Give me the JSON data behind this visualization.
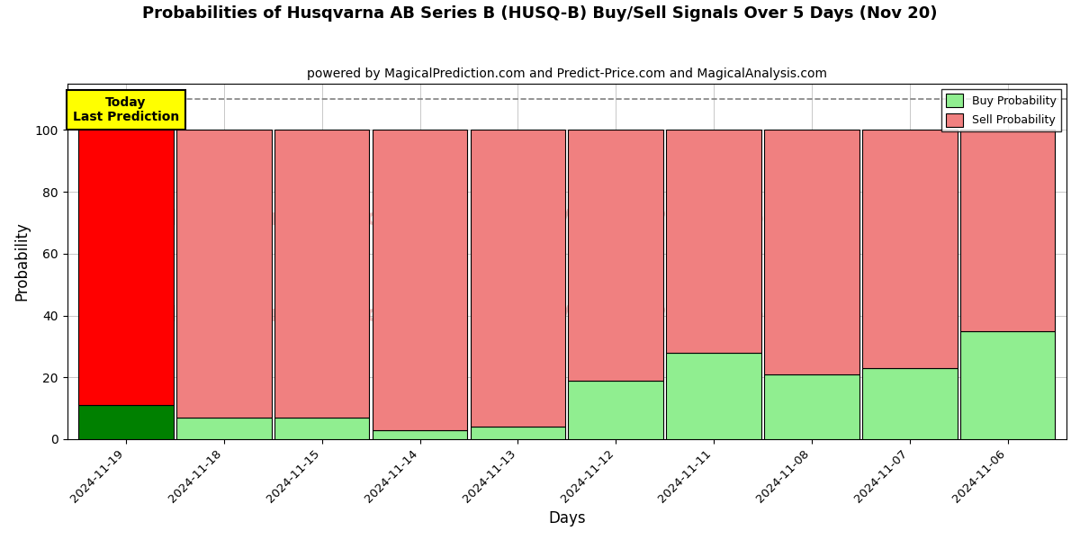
{
  "title": "Probabilities of Husqvarna AB Series B (HUSQ-B) Buy/Sell Signals Over 5 Days (Nov 20)",
  "subtitle": "powered by MagicalPrediction.com and Predict-Price.com and MagicalAnalysis.com",
  "xlabel": "Days",
  "ylabel": "Probability",
  "dates": [
    "2024-11-19",
    "2024-11-18",
    "2024-11-15",
    "2024-11-14",
    "2024-11-13",
    "2024-11-12",
    "2024-11-11",
    "2024-11-08",
    "2024-11-07",
    "2024-11-06"
  ],
  "buy_probs": [
    11,
    7,
    7,
    3,
    4,
    19,
    28,
    21,
    23,
    35
  ],
  "sell_probs": [
    89,
    93,
    93,
    97,
    96,
    81,
    72,
    79,
    77,
    65
  ],
  "buy_color_today": "#008000",
  "sell_color_today": "#ff0000",
  "buy_color_normal": "#90ee90",
  "sell_color_normal": "#f08080",
  "today_label": "Today\nLast Prediction",
  "today_box_color": "#ffff00",
  "today_box_edge": "#000000",
  "legend_buy_label": "Buy Probability",
  "legend_sell_label": "Sell Probability",
  "ylim": [
    0,
    115
  ],
  "dashed_line_y": 110,
  "bar_width": 0.97,
  "edgecolor": "#000000",
  "bg_color": "#ffffff",
  "watermark_color": "#e89090",
  "watermark_alpha": 0.55
}
